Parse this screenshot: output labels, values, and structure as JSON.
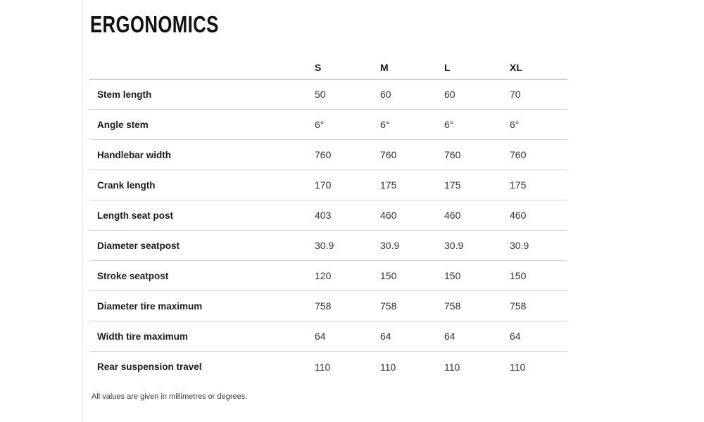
{
  "page": {
    "title": "ERGONOMICS",
    "footnote": "All values are given in millimetres or degrees."
  },
  "table": {
    "columns": [
      "S",
      "M",
      "L",
      "XL"
    ],
    "rows": [
      {
        "label": "Stem length",
        "values": [
          "50",
          "60",
          "60",
          "70"
        ]
      },
      {
        "label": "Angle stem",
        "values": [
          "6°",
          "6°",
          "6°",
          "6°"
        ]
      },
      {
        "label": "Handlebar width",
        "values": [
          "760",
          "760",
          "760",
          "760"
        ]
      },
      {
        "label": "Crank length",
        "values": [
          "170",
          "175",
          "175",
          "175"
        ]
      },
      {
        "label": "Length seat post",
        "values": [
          "403",
          "460",
          "460",
          "460"
        ]
      },
      {
        "label": "Diameter seatpost",
        "values": [
          "30.9",
          "30.9",
          "30.9",
          "30.9"
        ]
      },
      {
        "label": "Stroke seatpost",
        "values": [
          "120",
          "150",
          "150",
          "150"
        ]
      },
      {
        "label": "Diameter tire maximum",
        "values": [
          "758",
          "758",
          "758",
          "758"
        ]
      },
      {
        "label": "Width tire maximum",
        "values": [
          "64",
          "64",
          "64",
          "64"
        ]
      },
      {
        "label": "Rear suspension travel",
        "values": [
          "110",
          "110",
          "110",
          "110"
        ]
      }
    ],
    "colors": {
      "header_line": "#9a9a9a",
      "row_line": "#d2d2d2",
      "title_text": "#111111",
      "label_text": "#1c1c1c",
      "value_text": "#333333"
    }
  }
}
